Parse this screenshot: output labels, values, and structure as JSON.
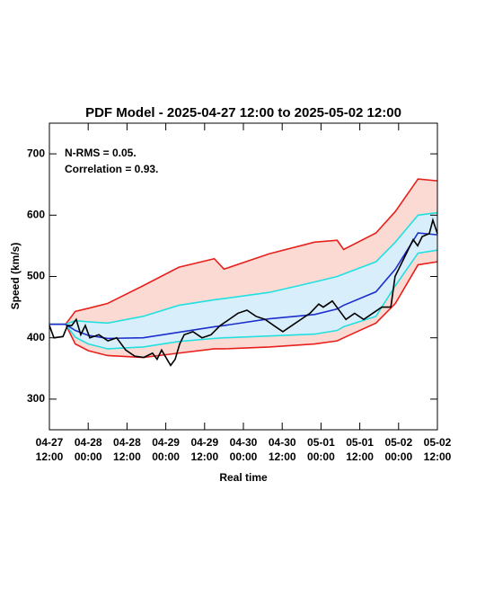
{
  "chart_data": {
    "type": "line",
    "title": "PDF Model - 2025-04-27 12:00 to 2025-05-02 12:00",
    "xlabel": "Real time",
    "ylabel": "Speed (km/s)",
    "annotations": [
      "N-RMS = 0.05.",
      "Correlation = 0.93."
    ],
    "xlim": [
      0,
      120
    ],
    "ylim": [
      250,
      750
    ],
    "xticks": [
      {
        "value": 0,
        "label": "04-27\n12:00"
      },
      {
        "value": 12,
        "label": "04-28\n00:00"
      },
      {
        "value": 24,
        "label": "04-28\n12:00"
      },
      {
        "value": 36,
        "label": "04-29\n00:00"
      },
      {
        "value": 48,
        "label": "04-29\n12:00"
      },
      {
        "value": 60,
        "label": "04-30\n00:00"
      },
      {
        "value": 72,
        "label": "04-30\n12:00"
      },
      {
        "value": 84,
        "label": "05-01\n00:00"
      },
      {
        "value": 96,
        "label": "05-01\n12:00"
      },
      {
        "value": 108,
        "label": "05-02\n00:00"
      },
      {
        "value": 120,
        "label": "05-02\n12:00"
      }
    ],
    "yticks": [
      300,
      400,
      500,
      600,
      700
    ],
    "x": [
      0,
      5,
      8,
      12,
      18,
      29,
      40,
      51,
      54,
      68,
      82,
      89,
      91,
      101,
      107,
      114,
      120
    ],
    "series": [
      {
        "color": "#e8201c",
        "values": [
          422,
          422,
          443,
          448,
          456,
          485,
          515,
          529,
          512,
          537,
          556,
          559,
          544,
          571,
          606,
          659,
          656
        ]
      },
      {
        "color": "#e8201c",
        "fill": "#fbdad4",
        "values": [
          422,
          422,
          390,
          379,
          371,
          368,
          375,
          382,
          382,
          385,
          390,
          395,
          400,
          424,
          456,
          519,
          524
        ]
      },
      {
        "color": "#22e0e0",
        "values": [
          422,
          422,
          428,
          426,
          424,
          435,
          453,
          462,
          464,
          474,
          491,
          500,
          504,
          524,
          556,
          600,
          604
        ]
      },
      {
        "color": "#22e0e0",
        "fill": "#d9eefb",
        "values": [
          422,
          422,
          401,
          390,
          382,
          385,
          394,
          399,
          400,
          403,
          406,
          412,
          418,
          435,
          485,
          538,
          543
        ]
      },
      {
        "color": "#1c2fcc",
        "values": [
          422,
          422,
          412,
          404,
          399,
          400,
          409,
          418,
          420,
          431,
          438,
          447,
          453,
          475,
          512,
          571,
          568
        ]
      },
      {
        "color": "#000000",
        "x": [
          0,
          1.4,
          4.2,
          5.6,
          6.9,
          8.3,
          9.7,
          11.1,
          12.5,
          15.3,
          18.1,
          20.8,
          23.6,
          26.4,
          29.2,
          31.9,
          33.3,
          34.7,
          37.5,
          38.9,
          40.3,
          41.7,
          44.4,
          47.2,
          50,
          52.8,
          55.6,
          58.3,
          61.1,
          63.9,
          66.7,
          69.4,
          72.2,
          75,
          77.8,
          80.6,
          83.3,
          84.7,
          87.5,
          90.3,
          91.7,
          94.4,
          97.2,
          100,
          102.8,
          105.6,
          106.9,
          109.7,
          112.5,
          113.9,
          115.3,
          117.5,
          118.6,
          120
        ],
        "values": [
          420,
          400,
          402,
          420,
          420,
          430,
          405,
          420,
          400,
          405,
          395,
          400,
          380,
          370,
          368,
          375,
          365,
          380,
          355,
          365,
          390,
          405,
          410,
          400,
          405,
          420,
          430,
          440,
          445,
          435,
          430,
          420,
          410,
          420,
          430,
          440,
          455,
          450,
          460,
          440,
          430,
          440,
          430,
          440,
          450,
          450,
          500,
          530,
          560,
          550,
          565,
          570,
          592,
          570
        ]
      }
    ]
  }
}
